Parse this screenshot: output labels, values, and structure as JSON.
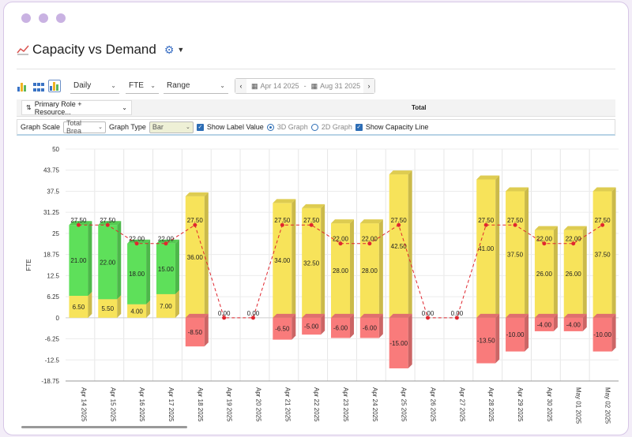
{
  "title": "Capacity vs Demand",
  "toolbar": {
    "period": "Daily",
    "unit": "FTE",
    "range": "Range",
    "start_date": "Apr 14 2025",
    "range_sep": "-",
    "end_date": "Aug 31 2025"
  },
  "group_by": "Primary Role + Resource...",
  "total_header": "Total",
  "options": {
    "graph_scale_label": "Graph Scale",
    "graph_scale_value": "Total Brea",
    "graph_type_label": "Graph Type",
    "graph_type_value": "Bar",
    "show_label_value": "Show Label Value",
    "graph_3d": "3D Graph",
    "graph_2d": "2D Graph",
    "show_capacity_line": "Show Capacity Line"
  },
  "colors": {
    "green": "#5ee05a",
    "yellow": "#f7e35a",
    "red": "#f97b7b",
    "capacity_line": "#e0272f"
  },
  "chart_data": {
    "type": "bar",
    "ylabel": "FTE",
    "ylim": [
      -18.75,
      50
    ],
    "yticks": [
      "50",
      "43.75",
      "37.5",
      "31.25",
      "25",
      "18.75",
      "12.5",
      "6.25",
      "0",
      "-6.25",
      "-12.5",
      "-18.75"
    ],
    "categories": [
      "Apr 14 2025",
      "Apr 15 2025",
      "Apr 16 2025",
      "Apr 17 2025",
      "Apr 18 2025",
      "Apr 19 2025",
      "Apr 20 2025",
      "Apr 21 2025",
      "Apr 22 2025",
      "Apr 23 2025",
      "Apr 24 2025",
      "Apr 25 2025",
      "Apr 26 2025",
      "Apr 27 2025",
      "Apr 28 2025",
      "Apr 29 2025",
      "Apr 30 2025",
      "May 01 2025",
      "May 02 2025"
    ],
    "series": [
      {
        "values": [
          6.5,
          5.5,
          4.0,
          7.0,
          null,
          null,
          null,
          null,
          null,
          null,
          null,
          null,
          null,
          null,
          null,
          null,
          null,
          null,
          null
        ],
        "labels": [
          "6.50",
          "5.50",
          "4.00",
          "7.00",
          "",
          "",
          "",
          "",
          "",
          "",
          "",
          "",
          "",
          "",
          "",
          "",
          "",
          "",
          ""
        ]
      },
      {
        "values": [
          21,
          22,
          18,
          15,
          null,
          null,
          null,
          null,
          null,
          null,
          null,
          null,
          null,
          null,
          null,
          null,
          null,
          null,
          null
        ],
        "labels": [
          "21.00",
          "22.00",
          "18.00",
          "15.00",
          "",
          "",
          "",
          "",
          "",
          "",
          "",
          "",
          "",
          "",
          "",
          "",
          "",
          "",
          ""
        ]
      },
      {
        "values": [
          null,
          null,
          null,
          null,
          36,
          null,
          null,
          34,
          32.5,
          28,
          28,
          42.5,
          null,
          null,
          41,
          37.5,
          26,
          26,
          37.5
        ],
        "labels": [
          "",
          "",
          "",
          "",
          "36.00",
          "",
          "",
          "34.00",
          "32.50",
          "28.00",
          "28.00",
          "42.50",
          "",
          "",
          "41.00",
          "37.50",
          "26.00",
          "26.00",
          "37.50"
        ]
      },
      {
        "values": [
          null,
          null,
          null,
          null,
          -8.5,
          null,
          null,
          -6.5,
          -5,
          -6,
          -6,
          -15,
          null,
          null,
          -13.5,
          -10,
          -4,
          -4,
          -10
        ],
        "labels": [
          "",
          "",
          "",
          "",
          "-8.50",
          "",
          "",
          "-6.50",
          "-5.00",
          "-6.00",
          "-6.00",
          "-15.00",
          "",
          "",
          "-13.50",
          "-10.00",
          "-4.00",
          "-4.00",
          "-10.00"
        ]
      },
      {
        "type": "line",
        "values": [
          27.5,
          27.5,
          22,
          22,
          27.5,
          0,
          0,
          27.5,
          27.5,
          22,
          22,
          27.5,
          0,
          0,
          27.5,
          27.5,
          22,
          22,
          27.5
        ],
        "labels": [
          "27.50",
          "27.50",
          "22.00",
          "22.00",
          "27.50",
          "0.00",
          "0.00",
          "27.50",
          "27.50",
          "22.00",
          "22.00",
          "27.50",
          "0.00",
          "0.00",
          "27.50",
          "27.50",
          "22.00",
          "22.00",
          "27.50"
        ]
      }
    ]
  }
}
